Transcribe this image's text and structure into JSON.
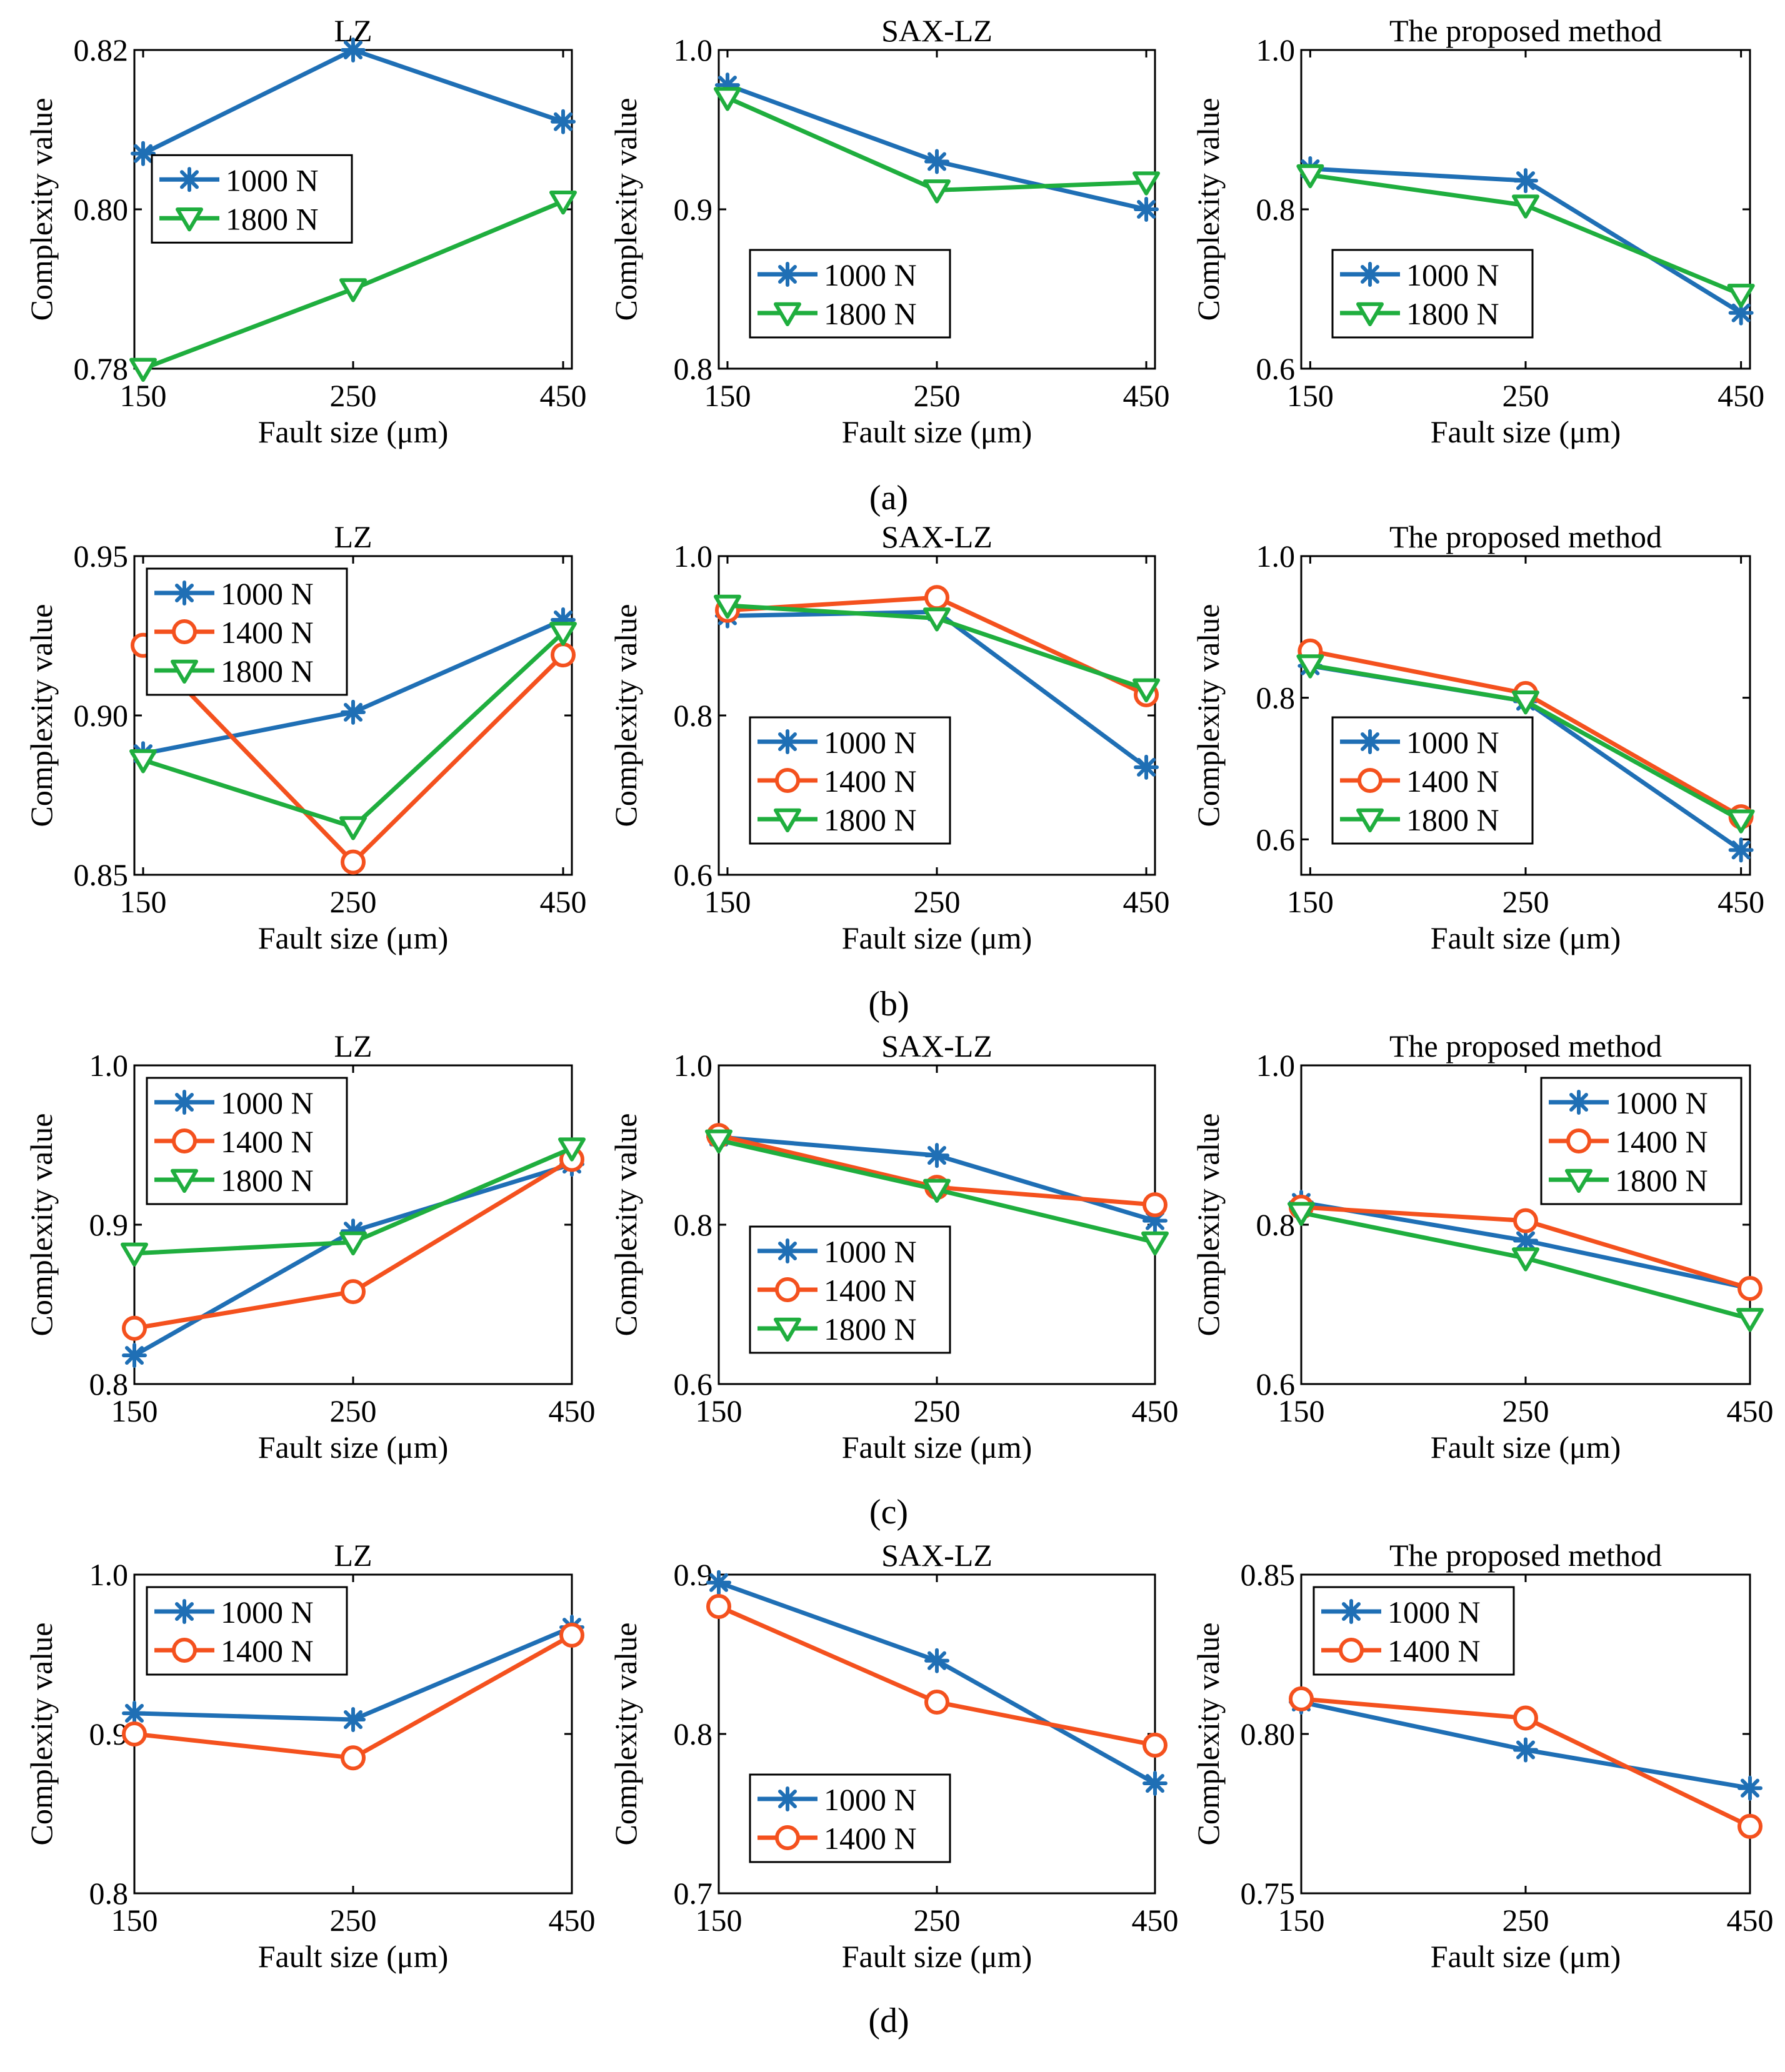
{
  "figure": {
    "panel_labels": [
      "(a)",
      "(b)",
      "(c)",
      "(d)"
    ]
  },
  "colors": {
    "1000 N": "#1f6fb5",
    "1400 N": "#f4511e",
    "1800 N": "#1fae3e"
  },
  "markers": {
    "1000 N": "asterisk",
    "1400 N": "circle",
    "1800 N": "triangle-down"
  },
  "chart_data": [
    {
      "type": "line",
      "row": 0,
      "col": 0,
      "title": "LZ",
      "xlabel": "Fault size (μm)",
      "ylabel": "Complexity value",
      "categories": [
        "150",
        "250",
        "450"
      ],
      "ylim": [
        0.78,
        0.82
      ],
      "yticks": [
        "0.78",
        "0.80",
        "0.82"
      ],
      "legend": "left",
      "xpad": 0.02,
      "series": [
        {
          "name": "1000 N",
          "values": [
            0.807,
            0.82,
            0.811
          ]
        },
        {
          "name": "1800 N",
          "values": [
            0.78,
            0.79,
            0.801
          ]
        }
      ]
    },
    {
      "type": "line",
      "row": 0,
      "col": 1,
      "title": "SAX-LZ",
      "xlabel": "Fault size (μm)",
      "ylabel": "Complexity value",
      "categories": [
        "150",
        "250",
        "450"
      ],
      "ylim": [
        0.8,
        1.0
      ],
      "yticks": [
        "0.8",
        "0.9",
        "1.0"
      ],
      "legend": "bottom-left",
      "xpad": 0.02,
      "series": [
        {
          "name": "1000 N",
          "values": [
            0.978,
            0.93,
            0.9
          ]
        },
        {
          "name": "1800 N",
          "values": [
            0.97,
            0.912,
            0.917
          ]
        }
      ]
    },
    {
      "type": "line",
      "row": 0,
      "col": 2,
      "title": "The proposed method",
      "xlabel": "Fault size (μm)",
      "ylabel": "Complexity value",
      "categories": [
        "150",
        "250",
        "450"
      ],
      "ylim": [
        0.6,
        1.0
      ],
      "yticks": [
        "0.6",
        "0.8",
        "1.0"
      ],
      "legend": "bottom-left",
      "xpad": 0.02,
      "series": [
        {
          "name": "1000 N",
          "values": [
            0.851,
            0.836,
            0.67
          ]
        },
        {
          "name": "1800 N",
          "values": [
            0.843,
            0.805,
            0.693
          ]
        }
      ]
    },
    {
      "type": "line",
      "row": 1,
      "col": 0,
      "title": "LZ",
      "xlabel": "Fault size (μm)",
      "ylabel": "Complexity value",
      "categories": [
        "150",
        "250",
        "450"
      ],
      "ylim": [
        0.85,
        0.95
      ],
      "yticks": [
        "0.85",
        "0.90",
        "0.95"
      ],
      "legend": "top-left",
      "xpad": 0.02,
      "series": [
        {
          "name": "1000 N",
          "values": [
            0.888,
            0.901,
            0.93
          ]
        },
        {
          "name": "1400 N",
          "values": [
            0.922,
            0.854,
            0.919
          ]
        },
        {
          "name": "1800 N",
          "values": [
            0.886,
            0.865,
            0.926
          ]
        }
      ]
    },
    {
      "type": "line",
      "row": 1,
      "col": 1,
      "title": "SAX-LZ",
      "xlabel": "Fault size (μm)",
      "ylabel": "Complexity value",
      "categories": [
        "150",
        "250",
        "450"
      ],
      "ylim": [
        0.6,
        1.0
      ],
      "yticks": [
        "0.6",
        "0.8",
        "1.0"
      ],
      "legend": "bottom-left",
      "xpad": 0.02,
      "series": [
        {
          "name": "1000 N",
          "values": [
            0.925,
            0.93,
            0.735
          ]
        },
        {
          "name": "1400 N",
          "values": [
            0.932,
            0.948,
            0.826
          ]
        },
        {
          "name": "1800 N",
          "values": [
            0.938,
            0.922,
            0.833
          ]
        }
      ]
    },
    {
      "type": "line",
      "row": 1,
      "col": 2,
      "title": "The proposed method",
      "xlabel": "Fault size (μm)",
      "ylabel": "Complexity value",
      "categories": [
        "150",
        "250",
        "450"
      ],
      "ylim": [
        0.55,
        1.0
      ],
      "yticks": [
        "0.6",
        "0.8",
        "1.0"
      ],
      "legend": "bottom-left",
      "xpad": 0.02,
      "series": [
        {
          "name": "1000 N",
          "values": [
            0.845,
            0.795,
            0.585
          ]
        },
        {
          "name": "1400 N",
          "values": [
            0.866,
            0.806,
            0.632
          ]
        },
        {
          "name": "1800 N",
          "values": [
            0.846,
            0.795,
            0.627
          ]
        }
      ]
    },
    {
      "type": "line",
      "row": 2,
      "col": 0,
      "title": "LZ",
      "xlabel": "Fault size (μm)",
      "ylabel": "Complexity value",
      "categories": [
        "150",
        "250",
        "450"
      ],
      "ylim": [
        0.8,
        1.0
      ],
      "yticks": [
        "0.8",
        "0.9",
        "1.0"
      ],
      "legend": "top-left",
      "xpad": 0.0,
      "series": [
        {
          "name": "1000 N",
          "values": [
            0.818,
            0.896,
            0.938
          ]
        },
        {
          "name": "1400 N",
          "values": [
            0.835,
            0.858,
            0.941
          ]
        },
        {
          "name": "1800 N",
          "values": [
            0.882,
            0.889,
            0.948
          ]
        }
      ]
    },
    {
      "type": "line",
      "row": 2,
      "col": 1,
      "title": "SAX-LZ",
      "xlabel": "Fault size (μm)",
      "ylabel": "Complexity value",
      "categories": [
        "150",
        "250",
        "450"
      ],
      "ylim": [
        0.6,
        1.0
      ],
      "yticks": [
        "0.6",
        "0.8",
        "1.0"
      ],
      "legend": "bottom-left",
      "xpad": 0.0,
      "series": [
        {
          "name": "1000 N",
          "values": [
            0.91,
            0.887,
            0.805
          ]
        },
        {
          "name": "1400 N",
          "values": [
            0.912,
            0.847,
            0.825
          ]
        },
        {
          "name": "1800 N",
          "values": [
            0.906,
            0.844,
            0.778
          ]
        }
      ]
    },
    {
      "type": "line",
      "row": 2,
      "col": 2,
      "title": "The proposed method",
      "xlabel": "Fault size (μm)",
      "ylabel": "Complexity value",
      "categories": [
        "150",
        "250",
        "450"
      ],
      "ylim": [
        0.6,
        1.0
      ],
      "yticks": [
        "0.6",
        "0.8",
        "1.0"
      ],
      "legend": "top-right",
      "xpad": 0.0,
      "series": [
        {
          "name": "1000 N",
          "values": [
            0.828,
            0.78,
            0.72
          ]
        },
        {
          "name": "1400 N",
          "values": [
            0.822,
            0.805,
            0.72
          ]
        },
        {
          "name": "1800 N",
          "values": [
            0.815,
            0.758,
            0.682
          ]
        }
      ]
    },
    {
      "type": "line",
      "row": 3,
      "col": 0,
      "title": "LZ",
      "xlabel": "Fault size (μm)",
      "ylabel": "Complexity value",
      "categories": [
        "150",
        "250",
        "450"
      ],
      "ylim": [
        0.8,
        1.0
      ],
      "yticks": [
        "0.8",
        "0.9",
        "1.0"
      ],
      "legend": "top-left",
      "xpad": 0.0,
      "series": [
        {
          "name": "1000 N",
          "values": [
            0.913,
            0.909,
            0.967
          ]
        },
        {
          "name": "1400 N",
          "values": [
            0.9,
            0.885,
            0.962
          ]
        }
      ]
    },
    {
      "type": "line",
      "row": 3,
      "col": 1,
      "title": "SAX-LZ",
      "xlabel": "Fault size (μm)",
      "ylabel": "Complexity value",
      "categories": [
        "150",
        "250",
        "450"
      ],
      "ylim": [
        0.7,
        0.9
      ],
      "yticks": [
        "0.7",
        "0.8",
        "0.9"
      ],
      "legend": "bottom-left",
      "xpad": 0.0,
      "series": [
        {
          "name": "1000 N",
          "values": [
            0.895,
            0.846,
            0.769
          ]
        },
        {
          "name": "1400 N",
          "values": [
            0.88,
            0.82,
            0.793
          ]
        }
      ]
    },
    {
      "type": "line",
      "row": 3,
      "col": 2,
      "title": "The proposed method",
      "xlabel": "Fault size (μm)",
      "ylabel": "Complexity value",
      "categories": [
        "150",
        "250",
        "450"
      ],
      "ylim": [
        0.75,
        0.85
      ],
      "yticks": [
        "0.75",
        "0.80",
        "0.85"
      ],
      "legend": "top-left",
      "xpad": 0.0,
      "series": [
        {
          "name": "1000 N",
          "values": [
            0.81,
            0.795,
            0.783
          ]
        },
        {
          "name": "1400 N",
          "values": [
            0.811,
            0.805,
            0.771
          ]
        }
      ]
    }
  ]
}
